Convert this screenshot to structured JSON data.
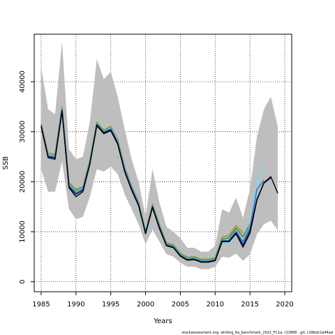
{
  "chart_data": {
    "type": "line",
    "xlabel": "Years",
    "ylabel": "SSB",
    "xlim": [
      1984,
      2021
    ],
    "ylim": [
      -2000,
      49500
    ],
    "x_ticks": [
      1985,
      1990,
      1995,
      2000,
      2005,
      2010,
      2015,
      2020
    ],
    "y_ticks": [
      0,
      10000,
      20000,
      30000,
      40000
    ],
    "grid": "dotted",
    "band": {
      "years": [
        1985,
        1986,
        1987,
        1988,
        1989,
        1990,
        1991,
        1992,
        1993,
        1994,
        1995,
        1996,
        1997,
        1998,
        1999,
        2000,
        2001,
        2002,
        2003,
        2004,
        2005,
        2006,
        2007,
        2008,
        2009,
        2010,
        2011,
        2012,
        2013,
        2014,
        2015,
        2016,
        2017,
        2018,
        2019
      ],
      "lower": [
        22500,
        18000,
        18000,
        24000,
        14500,
        12500,
        13000,
        17000,
        22500,
        22000,
        23000,
        21500,
        17500,
        14500,
        11500,
        7500,
        10500,
        8000,
        5500,
        5000,
        3800,
        3000,
        3000,
        2500,
        2500,
        3000,
        5000,
        4800,
        5600,
        4200,
        5500,
        9500,
        11500,
        12200,
        10300
      ],
      "upper": [
        43000,
        34500,
        33500,
        48000,
        26500,
        24500,
        25000,
        32000,
        44500,
        40500,
        42000,
        37000,
        30500,
        24500,
        20000,
        13000,
        22500,
        15800,
        11000,
        10000,
        8700,
        6800,
        6800,
        6000,
        6000,
        7200,
        14500,
        13800,
        16800,
        12800,
        18500,
        29000,
        34500,
        37000,
        31000
      ],
      "color": "#bebebe"
    },
    "series": [
      {
        "color": "#000000",
        "x": [
          1985,
          1986,
          1987,
          1988,
          1989,
          1990,
          1991,
          1992,
          1993,
          1994,
          1995,
          1996,
          1997,
          1998,
          1999,
          2000,
          2001,
          2002,
          2003,
          2004,
          2005,
          2006,
          2007,
          2008,
          2009,
          2010,
          2011,
          2012,
          2013,
          2014,
          2015,
          2016,
          2017,
          2018,
          2019
        ],
        "values": [
          31000,
          24800,
          24500,
          34000,
          18800,
          17000,
          18000,
          23500,
          31200,
          29600,
          30200,
          27500,
          22000,
          18300,
          15200,
          9600,
          14800,
          10600,
          7200,
          6800,
          5100,
          4300,
          4400,
          3900,
          3900,
          4200,
          8000,
          8000,
          9600,
          6900,
          9700,
          16300,
          19800,
          21000,
          17700
        ]
      },
      {
        "color": "#1a1a6e",
        "x": [
          1985,
          1986,
          1987,
          1988,
          1989,
          1990,
          1991,
          1992,
          1993,
          1994,
          1995,
          1996,
          1997,
          1998,
          1999,
          2000,
          2001,
          2002,
          2003,
          2004,
          2005,
          2006,
          2007,
          2008,
          2009,
          2010,
          2011,
          2012,
          2013,
          2014,
          2015,
          2016,
          2017,
          2018
        ],
        "values": [
          31200,
          25000,
          24800,
          34300,
          19000,
          17500,
          18300,
          23700,
          31400,
          29800,
          30400,
          27700,
          22200,
          18500,
          15400,
          9700,
          15000,
          10800,
          7300,
          6900,
          5200,
          4400,
          4500,
          4000,
          4000,
          4300,
          8100,
          8100,
          9800,
          7400,
          10200,
          16500,
          19700,
          20800
        ]
      },
      {
        "color": "#2a7fbf",
        "x": [
          1985,
          1986,
          1987,
          1988,
          1989,
          1990,
          1991,
          1992,
          1993,
          1994,
          1995,
          1996,
          1997,
          1998,
          1999,
          2000,
          2001,
          2002,
          2003,
          2004,
          2005,
          2006,
          2007,
          2008,
          2009,
          2010,
          2011,
          2012,
          2013,
          2014,
          2015,
          2016,
          2017
        ],
        "values": [
          31300,
          25200,
          25000,
          34500,
          19300,
          17800,
          18500,
          23900,
          31500,
          29900,
          30600,
          27900,
          22400,
          18700,
          15500,
          9800,
          15100,
          11000,
          7400,
          7000,
          5300,
          4500,
          4600,
          4100,
          4100,
          4400,
          8200,
          8300,
          10100,
          8000,
          10800,
          18500,
          20300
        ]
      },
      {
        "color": "#7fd4f0",
        "x": [
          1985,
          1986,
          1987,
          1988,
          1989,
          1990,
          1991,
          1992,
          1993,
          1994,
          1995,
          1996,
          1997,
          1998,
          1999,
          2000,
          2001,
          2002,
          2003,
          2004,
          2005,
          2006,
          2007,
          2008,
          2009,
          2010,
          2011,
          2012,
          2013,
          2014,
          2015,
          2016,
          2017
        ],
        "values": [
          31400,
          25400,
          25200,
          34700,
          19500,
          18000,
          18700,
          24100,
          31600,
          30000,
          30800,
          28100,
          22600,
          18900,
          15700,
          9900,
          15200,
          11100,
          7500,
          7100,
          5400,
          4600,
          4700,
          4200,
          4200,
          4500,
          8000,
          7700,
          9500,
          7700,
          11300,
          20500,
          23500
        ]
      },
      {
        "color": "#2e8b57",
        "x": [
          1985,
          1986,
          1987,
          1988,
          1989,
          1990,
          1991,
          1992,
          1993,
          1994,
          1995,
          1996,
          1997,
          1998,
          1999,
          2000,
          2001,
          2002,
          2003,
          2004,
          2005,
          2006,
          2007,
          2008,
          2009,
          2010,
          2011,
          2012,
          2013,
          2014,
          2015
        ],
        "values": [
          31400,
          25400,
          25300,
          34800,
          19600,
          18200,
          18800,
          24200,
          31700,
          30100,
          30900,
          28200,
          22700,
          19000,
          15800,
          10000,
          15300,
          11200,
          7600,
          7200,
          5500,
          4700,
          4800,
          4300,
          4300,
          4600,
          8500,
          8800,
          10700,
          9000,
          11500
        ]
      },
      {
        "color": "#9a9a1a",
        "x": [
          1985,
          1986,
          1987,
          1988,
          1989,
          1990,
          1991,
          1992,
          1993,
          1994,
          1995,
          1996,
          1997,
          1998,
          1999,
          2000,
          2001,
          2002,
          2003,
          2004,
          2005,
          2006,
          2007,
          2008,
          2009,
          2010,
          2011,
          2012,
          2013,
          2014
        ],
        "values": [
          31600,
          25700,
          25500,
          35000,
          19800,
          18500,
          19000,
          24400,
          31900,
          30300,
          31100,
          28400,
          22900,
          19200,
          16000,
          10100,
          15500,
          11400,
          7800,
          7400,
          5700,
          4900,
          5000,
          4500,
          4500,
          4800,
          8900,
          9300,
          11200,
          9800
        ]
      }
    ]
  },
  "footer_text": "stockassessment.org,  whiting_6a_benchmark_2021_FC1a,  r13868 ,  git: c28bdc2a44ad"
}
